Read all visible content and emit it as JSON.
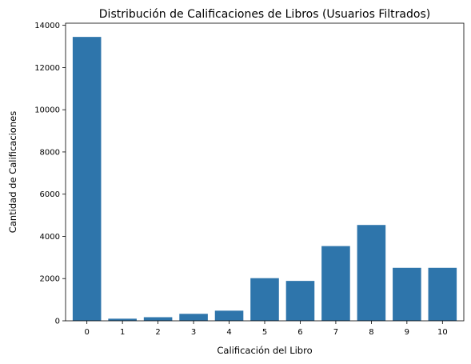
{
  "chart_data": {
    "type": "bar",
    "title": "Distribución de Calificaciones de Libros (Usuarios Filtrados)",
    "xlabel": "Calificación del Libro",
    "ylabel": "Cantidad de Calificaciones",
    "categories": [
      "0",
      "1",
      "2",
      "3",
      "4",
      "5",
      "6",
      "7",
      "8",
      "9",
      "10"
    ],
    "values": [
      13450,
      100,
      170,
      330,
      480,
      2020,
      1890,
      3540,
      4540,
      2510,
      2510
    ],
    "ylim": [
      0,
      14100
    ],
    "yticks": [
      0,
      2000,
      4000,
      6000,
      8000,
      10000,
      12000,
      14000
    ],
    "grid": false,
    "bar_color": "#2e75ab"
  }
}
